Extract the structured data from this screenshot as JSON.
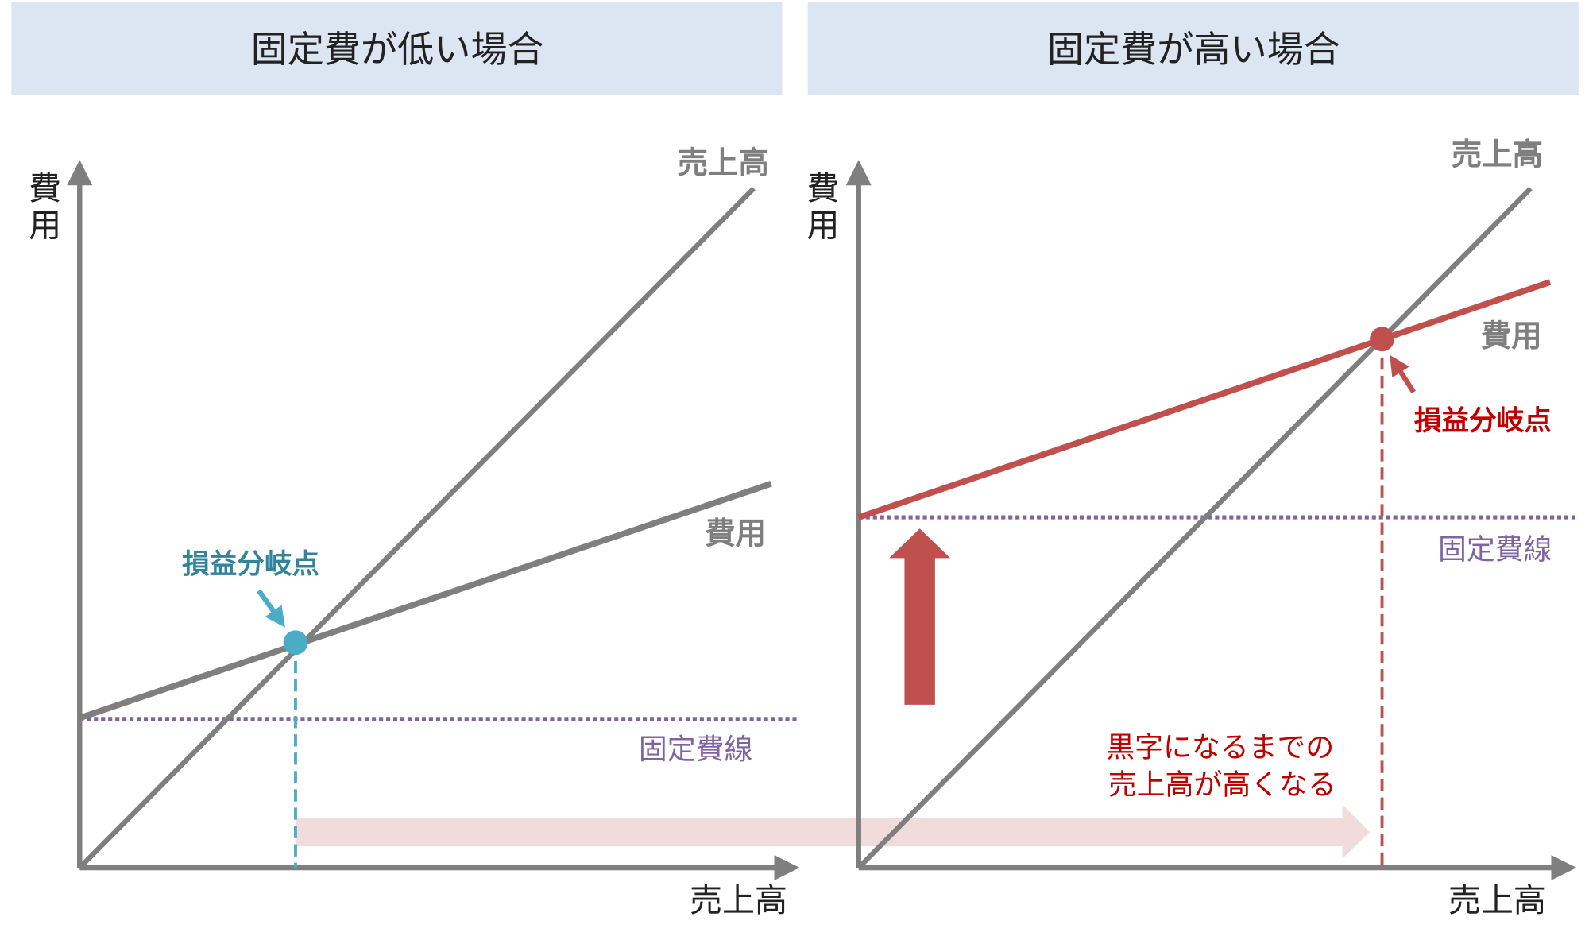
{
  "panels": [
    {
      "title": "固定費が低い場合",
      "labels": {
        "sales_line": "売上高",
        "cost_line": "費用",
        "fixed_cost_line": "固定費線",
        "break_even": "損益分岐点",
        "x_axis": "売上高",
        "y_axis_1": "費",
        "y_axis_2": "用"
      }
    },
    {
      "title": "固定費が高い場合",
      "labels": {
        "sales_line": "売上高",
        "cost_line": "費用",
        "fixed_cost_line": "固定費線",
        "break_even": "損益分岐点",
        "x_axis": "売上高",
        "y_axis_1": "費",
        "y_axis_2": "用"
      },
      "annotation_line1": "黒字になるまでの",
      "annotation_line2": "売上高が高くなる"
    }
  ],
  "colors": {
    "header_bg": "#dce6f2",
    "axis": "#7f7f7f",
    "fixed_cost": "#8064a2",
    "bep_low": "#4bacc6",
    "bep_low_label": "#31849b",
    "high_cost": "#c0504d",
    "red_text": "#c00000",
    "shift_arrow": "#f2dcdb"
  }
}
